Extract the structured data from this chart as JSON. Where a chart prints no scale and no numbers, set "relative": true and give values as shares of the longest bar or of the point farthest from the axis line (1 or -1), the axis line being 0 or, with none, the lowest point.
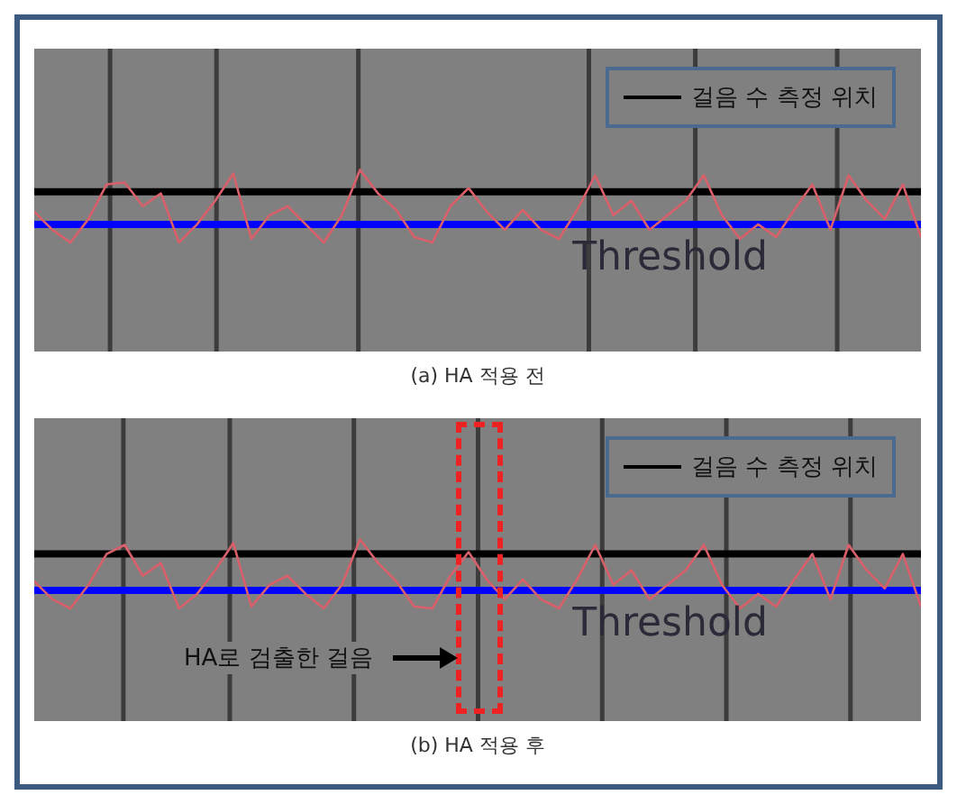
{
  "chart_data": [
    {
      "type": "line",
      "relative": true,
      "tick_labels": false,
      "legend": "top right",
      "xlabel": "(a) HA 적용 전",
      "categories": [
        null,
        null,
        null,
        null,
        null,
        null,
        null,
        null,
        null,
        null,
        null,
        null,
        null,
        null,
        null,
        null,
        null,
        null,
        null,
        null,
        null,
        null,
        null,
        null,
        null,
        null,
        null,
        null,
        null,
        null,
        null,
        null,
        null,
        null,
        null,
        null,
        null,
        null,
        null,
        null,
        null,
        null,
        null,
        null,
        null,
        null,
        null,
        null,
        null,
        null
      ],
      "series": [
        {
          "color": "#d9606a",
          "values": [
            0.77,
            0.67,
            0.6,
            0.73,
            0.92,
            0.93,
            0.8,
            0.87,
            0.6,
            0.7,
            0.83,
            0.98,
            0.62,
            0.75,
            0.8,
            0.7,
            0.6,
            0.75,
            1,
            0.87,
            0.78,
            0.63,
            0.6,
            0.8,
            0.9,
            0.77,
            0.67,
            0.78,
            0.67,
            0.62,
            0.78,
            0.97,
            0.75,
            0.83,
            0.67,
            0.75,
            0.83,
            0.97,
            0.75,
            0.62,
            0.7,
            0.63,
            0.78,
            0.92,
            0.67,
            0.97,
            0.83,
            0.73,
            0.92,
            0.63
          ]
        }
      ],
      "ref_lines": [
        {
          "axis": "y",
          "value": 0.88,
          "label": "걸음 수 측정 위치",
          "color": "#000000"
        },
        {
          "axis": "y",
          "value": 0.7,
          "label": "Threshold",
          "color": "#0000ff"
        }
      ]
    },
    {
      "type": "line",
      "relative": true,
      "tick_labels": false,
      "legend": "top right",
      "xlabel": "(b) HA 적용 후",
      "annotations": [
        "HA로 검출한 걸음"
      ],
      "categories": [
        null,
        null,
        null,
        null,
        null,
        null,
        null,
        null,
        null,
        null,
        null,
        null,
        null,
        null,
        null,
        null,
        null,
        null,
        null,
        null,
        null,
        null,
        null,
        null,
        null,
        null,
        null,
        null,
        null,
        null,
        null,
        null,
        null,
        null,
        null,
        null,
        null,
        null,
        null,
        null,
        null,
        null,
        null,
        null,
        null,
        null,
        null,
        null,
        null,
        null
      ],
      "series": [
        {
          "color": "#d9606a",
          "values": [
            0.77,
            0.67,
            0.62,
            0.75,
            0.92,
            0.97,
            0.8,
            0.87,
            0.62,
            0.7,
            0.83,
            0.98,
            0.63,
            0.75,
            0.8,
            0.7,
            0.62,
            0.75,
            1,
            0.87,
            0.77,
            0.63,
            0.62,
            0.8,
            0.93,
            0.78,
            0.67,
            0.78,
            0.67,
            0.62,
            0.78,
            0.97,
            0.75,
            0.83,
            0.67,
            0.75,
            0.83,
            0.97,
            0.75,
            0.62,
            0.7,
            0.63,
            0.78,
            0.92,
            0.67,
            0.97,
            0.83,
            0.73,
            0.92,
            0.63
          ]
        }
      ],
      "ref_lines": [
        {
          "axis": "y",
          "value": 0.92,
          "label": "걸음 수 측정 위치",
          "color": "#000000"
        },
        {
          "axis": "y",
          "value": 0.72,
          "label": "Threshold",
          "color": "#0000ff"
        }
      ]
    }
  ]
}
